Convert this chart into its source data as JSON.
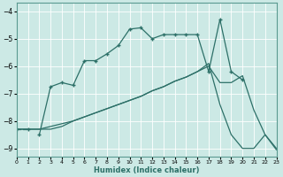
{
  "xlabel": "Humidex (Indice chaleur)",
  "bg_color": "#cce9e5",
  "grid_color": "#b8ddd9",
  "line_color": "#2d7068",
  "xlim": [
    0,
    23
  ],
  "ylim": [
    -9.3,
    -3.7
  ],
  "yticks": [
    -9,
    -8,
    -7,
    -6,
    -5,
    -4
  ],
  "xticks": [
    0,
    1,
    2,
    3,
    4,
    5,
    6,
    7,
    8,
    9,
    10,
    11,
    12,
    13,
    14,
    15,
    16,
    17,
    18,
    19,
    20,
    21,
    22,
    23
  ],
  "line1_x": [
    0,
    1
  ],
  "line1_y": [
    -8.3,
    -8.3
  ],
  "line2_x": [
    2,
    3,
    4,
    5,
    6,
    7,
    8,
    9,
    10,
    11,
    12,
    13,
    14,
    15,
    16,
    17,
    18,
    19,
    20
  ],
  "line2_y": [
    -8.5,
    -6.75,
    -6.6,
    -6.7,
    -5.8,
    -5.8,
    -5.55,
    -5.25,
    -4.65,
    -4.6,
    -5.0,
    -4.85,
    -4.85,
    -4.85,
    -4.85,
    -6.2,
    -4.3,
    -6.2,
    -6.5
  ],
  "line3_x": [
    0,
    1,
    2,
    3,
    4,
    5,
    6,
    7,
    8,
    9,
    10,
    11,
    12,
    13,
    14,
    15,
    16,
    17,
    18,
    19,
    20,
    21,
    22,
    23
  ],
  "line3_y": [
    -8.3,
    -8.3,
    -8.3,
    -8.3,
    -8.2,
    -8.0,
    -7.85,
    -7.7,
    -7.55,
    -7.4,
    -7.25,
    -7.1,
    -6.9,
    -6.75,
    -6.55,
    -6.4,
    -6.2,
    -6.0,
    -6.6,
    -6.6,
    -6.35,
    -7.6,
    -8.5,
    -9.0
  ],
  "line4_x": [
    0,
    1,
    2,
    3,
    4,
    5,
    6,
    7,
    8,
    9,
    10,
    11,
    12,
    13,
    14,
    15,
    16,
    17,
    18,
    19,
    20,
    21,
    22,
    23
  ],
  "line4_y": [
    -8.3,
    -8.3,
    -8.3,
    -8.2,
    -8.1,
    -8.0,
    -7.85,
    -7.7,
    -7.55,
    -7.4,
    -7.25,
    -7.1,
    -6.9,
    -6.75,
    -6.55,
    -6.4,
    -6.2,
    -5.9,
    -7.4,
    -8.5,
    -9.0,
    -9.0,
    -8.5,
    -9.05
  ]
}
